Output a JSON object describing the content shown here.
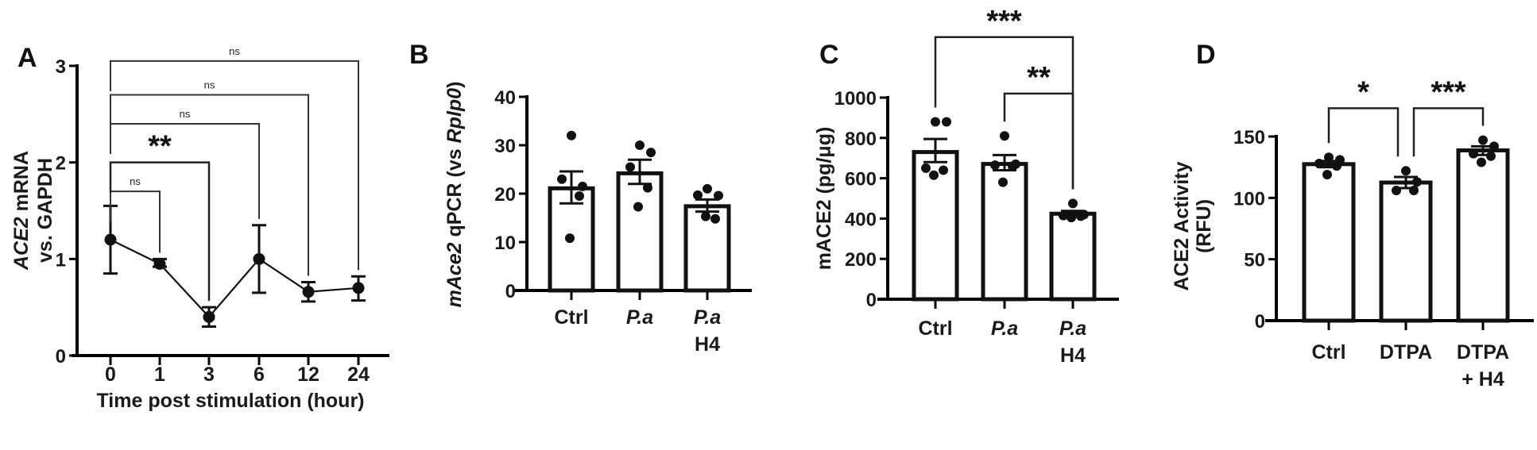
{
  "figure": {
    "panels": [
      "A",
      "B",
      "C",
      "D"
    ]
  },
  "chart_data": [
    {
      "panel": "A",
      "type": "line",
      "title": "",
      "xlabel": "Time post stimulation (hour)",
      "ylabel": "ACE2 mRNA vs. GAPDH",
      "ylabel_lines": [
        "ACE2 mRNA",
        "vs. GAPDH"
      ],
      "ylabel_italic_part": "ACE2",
      "categories": [
        "0",
        "1",
        "3",
        "6",
        "12",
        "24"
      ],
      "values": [
        1.2,
        0.95,
        0.4,
        1.0,
        0.66,
        0.7
      ],
      "error_low": [
        0.85,
        0.92,
        0.3,
        0.65,
        0.56,
        0.57
      ],
      "error_high": [
        1.55,
        1.0,
        0.5,
        1.35,
        0.76,
        0.82
      ],
      "ylim": [
        0,
        3
      ],
      "yticks": [
        0,
        1,
        2,
        3
      ],
      "grid": false,
      "significance": [
        {
          "from": "0",
          "to": "1",
          "label": "ns",
          "y": 1.7
        },
        {
          "from": "0",
          "to": "3",
          "label": "**",
          "y": 2.0
        },
        {
          "from": "0",
          "to": "6",
          "label": "ns",
          "y": 2.4
        },
        {
          "from": "0",
          "to": "12",
          "label": "ns",
          "y": 2.7
        },
        {
          "from": "0",
          "to": "24",
          "label": "ns",
          "y": 3.05
        }
      ]
    },
    {
      "panel": "B",
      "type": "bar",
      "title": "",
      "xlabel": "",
      "ylabel": "mAce2 qPCR (vs Rplp0)",
      "ylabel_parts": [
        {
          "text": "mAce2",
          "italic": true
        },
        {
          "text": " qPCR (vs ",
          "italic": false
        },
        {
          "text": "Rplp0",
          "italic": true
        },
        {
          "text": ")",
          "italic": false
        }
      ],
      "categories": [
        "Ctrl",
        "P.a",
        "P.a H4"
      ],
      "category_lines": [
        [
          "Ctrl"
        ],
        [
          "P.a"
        ],
        [
          "P.a",
          "H4"
        ]
      ],
      "category_italic": [
        false,
        true,
        true
      ],
      "values": [
        21.1,
        24.2,
        17.4
      ],
      "error_low": [
        18.0,
        22.0,
        16.3
      ],
      "error_high": [
        24.6,
        27.0,
        18.8
      ],
      "points": [
        [
          32.0,
          21.5,
          23.0,
          19.5,
          10.8
        ],
        [
          30.0,
          28.5,
          25.5,
          21.2,
          17.3
        ],
        [
          21.0,
          19.6,
          19.7,
          14.8,
          15.3
        ]
      ],
      "ylim": [
        0,
        40
      ],
      "yticks": [
        0,
        10,
        20,
        30,
        40
      ],
      "grid": false,
      "significance": []
    },
    {
      "panel": "C",
      "type": "bar",
      "title": "",
      "xlabel": "",
      "ylabel": "mACE2 (pg/μg)",
      "categories": [
        "Ctrl",
        "P.a",
        "P.a H4"
      ],
      "category_lines": [
        [
          "Ctrl"
        ],
        [
          "P.a"
        ],
        [
          "P.a",
          "H4"
        ]
      ],
      "category_italic": [
        false,
        true,
        true
      ],
      "values": [
        730,
        671,
        424
      ],
      "error_low": [
        680,
        640,
        410
      ],
      "error_high": [
        795,
        715,
        438
      ],
      "points": [
        [
          880,
          880,
          650,
          640,
          615
        ],
        [
          810,
          670,
          665,
          660,
          580
        ],
        [
          475,
          420,
          415,
          412,
          405
        ]
      ],
      "ylim": [
        0,
        1000
      ],
      "yticks": [
        0,
        200,
        400,
        600,
        800,
        1000
      ],
      "grid": false,
      "significance": [
        {
          "from": "Ctrl",
          "to": "P.a H4",
          "label": "***",
          "y": 1300
        },
        {
          "from": "P.a",
          "to": "P.a H4",
          "label": "**",
          "y": 1020
        }
      ]
    },
    {
      "panel": "D",
      "type": "bar",
      "title": "",
      "xlabel": "",
      "ylabel": "ACE2 Activity (RFU)",
      "ylabel_lines": [
        "ACE2 Activity",
        "(RFU)"
      ],
      "categories": [
        "Ctrl",
        "DTPA",
        "DTPA + H4"
      ],
      "category_lines": [
        [
          "Ctrl"
        ],
        [
          "DTPA"
        ],
        [
          "DTPA",
          "+ H4"
        ]
      ],
      "category_italic": [
        false,
        false,
        false
      ],
      "values": [
        127.5,
        112.5,
        138.7
      ],
      "error_low": [
        125,
        108,
        135
      ],
      "error_high": [
        130,
        117,
        142
      ],
      "points": [
        [
          133,
          131,
          128,
          126,
          119
        ],
        [
          122,
          113,
          106,
          106
        ],
        [
          147,
          142,
          136,
          134,
          129
        ]
      ],
      "ylim": [
        0,
        150
      ],
      "yticks": [
        0,
        50,
        100,
        150
      ],
      "grid": false,
      "significance": [
        {
          "from": "Ctrl",
          "to": "DTPA",
          "label": "*",
          "y": 173
        },
        {
          "from": "DTPA",
          "to": "DTPA + H4",
          "label": "***",
          "y": 173
        }
      ]
    }
  ]
}
